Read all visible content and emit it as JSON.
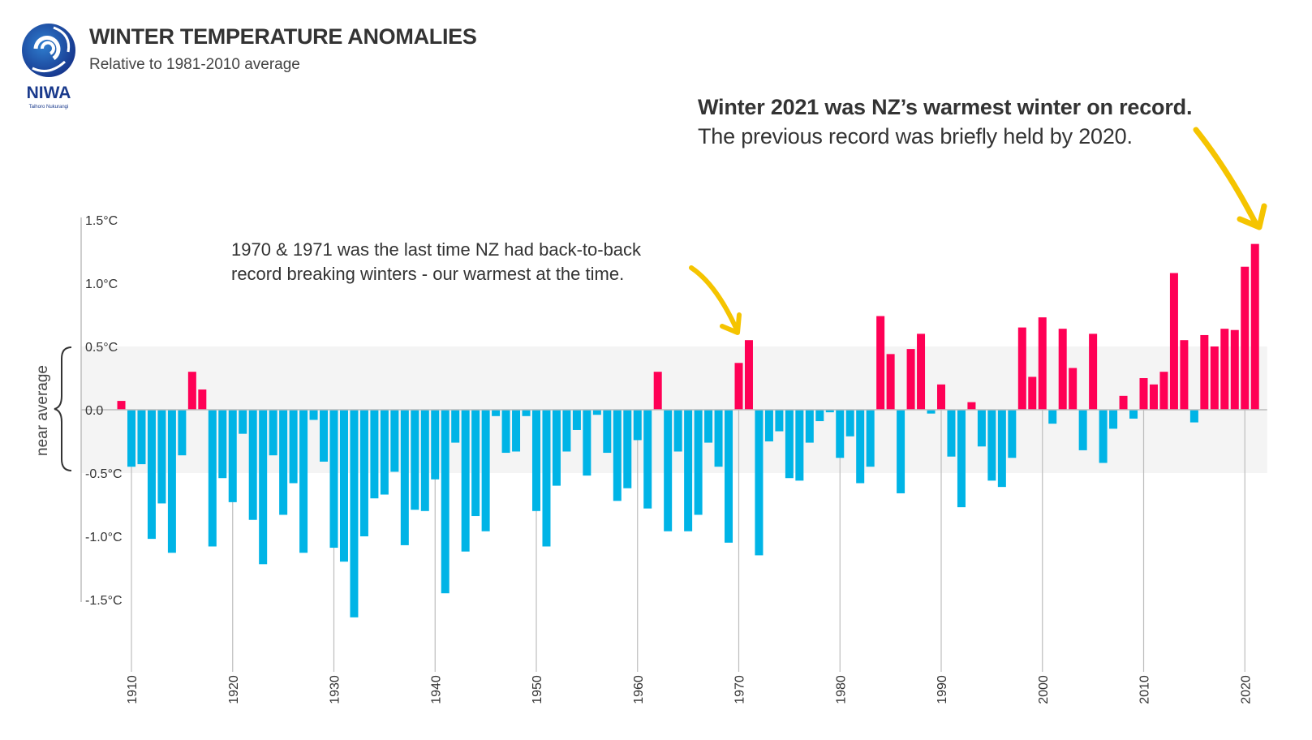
{
  "header": {
    "title": "WINTER TEMPERATURE ANOMALIES",
    "subtitle": "Relative to 1981-2010 average"
  },
  "logo": {
    "name": "NIWA",
    "tagline": "Taihoro Nukurangi",
    "color": "#1a3a8c"
  },
  "annotations": {
    "record_bold": "Winter 2021 was NZ’s warmest winter on record.",
    "record_text": "The previous record was briefly held by 2020.",
    "back_to_back_line1": "1970 & 1971 was the last time NZ had back-to-back",
    "back_to_back_line2": "record breaking winters - our warmest at the time.",
    "arrow_color": "#f5c400"
  },
  "chart_data": {
    "type": "bar",
    "title": "WINTER TEMPERATURE ANOMALIES",
    "subtitle": "Relative to 1981-2010 average",
    "band_label": "near average",
    "band_range": [
      -0.5,
      0.5
    ],
    "ylim": [
      -1.5,
      1.5
    ],
    "yticks": [
      1.5,
      1.0,
      0.5,
      0.0,
      -0.5,
      -1.0,
      -1.5
    ],
    "ytick_labels": [
      "1.5°C",
      "1.0°C",
      "0.5°C",
      "0.0",
      "-0.5°C",
      "-1.0°C",
      "-1.5°C"
    ],
    "xticks": [
      1910,
      1920,
      1930,
      1940,
      1950,
      1960,
      1970,
      1980,
      1990,
      2000,
      2010,
      2020
    ],
    "colors": {
      "positive": "#ff0055",
      "negative": "#00b4e6",
      "band": "#f4f4f4",
      "grid": "#bdbdbd"
    },
    "years": [
      1909,
      1910,
      1911,
      1912,
      1913,
      1914,
      1915,
      1916,
      1917,
      1918,
      1919,
      1920,
      1921,
      1922,
      1923,
      1924,
      1925,
      1926,
      1927,
      1928,
      1929,
      1930,
      1931,
      1932,
      1933,
      1934,
      1935,
      1936,
      1937,
      1938,
      1939,
      1940,
      1941,
      1942,
      1943,
      1944,
      1945,
      1946,
      1947,
      1948,
      1949,
      1950,
      1951,
      1952,
      1953,
      1954,
      1955,
      1956,
      1957,
      1958,
      1959,
      1960,
      1961,
      1962,
      1963,
      1964,
      1965,
      1966,
      1967,
      1968,
      1969,
      1970,
      1971,
      1972,
      1973,
      1974,
      1975,
      1976,
      1977,
      1978,
      1979,
      1980,
      1981,
      1982,
      1983,
      1984,
      1985,
      1986,
      1987,
      1988,
      1989,
      1990,
      1991,
      1992,
      1993,
      1994,
      1995,
      1996,
      1997,
      1998,
      1999,
      2000,
      2001,
      2002,
      2003,
      2004,
      2005,
      2006,
      2007,
      2008,
      2009,
      2010,
      2011,
      2012,
      2013,
      2014,
      2015,
      2016,
      2017,
      2018,
      2019,
      2020,
      2021
    ],
    "values": [
      0.07,
      -0.45,
      -0.43,
      -1.02,
      -0.74,
      -1.13,
      -0.36,
      0.3,
      0.16,
      -1.08,
      -0.54,
      -0.73,
      -0.19,
      -0.87,
      -1.22,
      -0.36,
      -0.83,
      -0.58,
      -1.13,
      -0.08,
      -0.41,
      -1.09,
      -1.2,
      -1.64,
      -1.0,
      -0.7,
      -0.67,
      -0.49,
      -1.07,
      -0.79,
      -0.8,
      -0.55,
      -1.45,
      -0.26,
      -1.12,
      -0.84,
      -0.96,
      -0.05,
      -0.34,
      -0.33,
      -0.05,
      -0.8,
      -1.08,
      -0.6,
      -0.33,
      -0.16,
      -0.52,
      -0.04,
      -0.34,
      -0.72,
      -0.62,
      -0.24,
      -0.78,
      0.3,
      -0.96,
      -0.33,
      -0.96,
      -0.83,
      -0.26,
      -0.45,
      -1.05,
      0.37,
      0.55,
      -1.15,
      -0.25,
      -0.17,
      -0.54,
      -0.56,
      -0.26,
      -0.09,
      -0.02,
      -0.38,
      -0.21,
      -0.58,
      -0.45,
      0.74,
      0.44,
      -0.66,
      0.48,
      0.6,
      -0.03,
      0.2,
      -0.37,
      -0.77,
      0.06,
      -0.29,
      -0.56,
      -0.61,
      -0.38,
      0.65,
      0.26,
      0.73,
      -0.11,
      0.64,
      0.33,
      -0.32,
      0.6,
      -0.42,
      -0.15,
      0.11,
      -0.07,
      0.25,
      0.2,
      0.3,
      1.08,
      0.55,
      -0.1,
      0.59,
      0.5,
      0.64,
      0.63,
      1.13,
      1.31
    ]
  }
}
